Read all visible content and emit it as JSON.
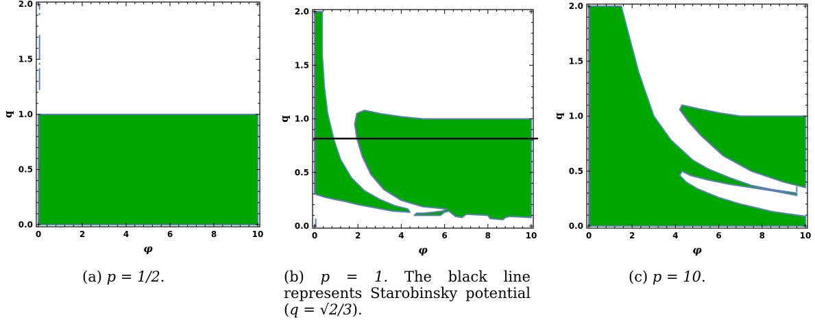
{
  "chart_data": [
    {
      "type": "region",
      "xlabel": "φ",
      "ylabel": "q",
      "xlim": [
        0,
        10
      ],
      "ylim": [
        0,
        2
      ],
      "xticks": [
        "0",
        "2",
        "4",
        "6",
        "8",
        "10"
      ],
      "yticks": [
        "0.0",
        "0.5",
        "1.0",
        "1.5",
        "2.0"
      ],
      "fill_color": "#00a600",
      "edge_color": "#5b7fb5",
      "regions": [
        [
          [
            0,
            0
          ],
          [
            10,
            0
          ],
          [
            10,
            1.0
          ],
          [
            0,
            1.0
          ]
        ]
      ],
      "dashed_segments": [
        [
          [
            0.05,
            2.0
          ],
          [
            0.05,
            1.95
          ]
        ],
        [
          [
            0.05,
            1.92
          ],
          [
            0.05,
            1.9
          ]
        ],
        [
          [
            0.05,
            1.72
          ],
          [
            0.05,
            1.5
          ]
        ],
        [
          [
            0.05,
            1.47
          ],
          [
            0.05,
            1.45
          ]
        ],
        [
          [
            0.05,
            1.42
          ],
          [
            0.05,
            1.22
          ]
        ]
      ],
      "caption": "(a) p = 1/2."
    },
    {
      "type": "region",
      "xlabel": "φ",
      "ylabel": "q",
      "xlim": [
        0,
        10
      ],
      "ylim": [
        0,
        2
      ],
      "xticks": [
        "0",
        "2",
        "4",
        "6",
        "8",
        "10"
      ],
      "yticks": [
        "0.0",
        "0.5",
        "1.0",
        "1.5",
        "2.0"
      ],
      "fill_color": "#00a600",
      "edge_color": "#5b7fb5",
      "hline": 0.816,
      "regions": [
        [
          [
            0,
            2.0
          ],
          [
            0.35,
            2.0
          ],
          [
            0.35,
            1.6
          ],
          [
            0.45,
            1.3
          ],
          [
            0.6,
            1.05
          ],
          [
            0.9,
            0.8
          ],
          [
            1.2,
            0.62
          ],
          [
            1.7,
            0.45
          ],
          [
            2.3,
            0.33
          ],
          [
            3.0,
            0.25
          ],
          [
            3.7,
            0.19
          ],
          [
            4.3,
            0.16
          ],
          [
            4.4,
            0.13
          ],
          [
            3.6,
            0.14
          ],
          [
            2.8,
            0.17
          ],
          [
            2.0,
            0.2
          ],
          [
            1.4,
            0.23
          ],
          [
            0.9,
            0.25
          ],
          [
            0.45,
            0.27
          ],
          [
            0,
            0.3
          ]
        ],
        [
          [
            1.9,
            1.0
          ],
          [
            1.95,
            1.05
          ],
          [
            2.3,
            1.08
          ],
          [
            3.0,
            1.05
          ],
          [
            4.0,
            1.02
          ],
          [
            5.0,
            1.0
          ],
          [
            7.0,
            1.0
          ],
          [
            10,
            1.0
          ],
          [
            10,
            0.08
          ],
          [
            9.0,
            0.09
          ],
          [
            8.8,
            0.08
          ],
          [
            8.7,
            0.06
          ],
          [
            8.1,
            0.07
          ],
          [
            8.0,
            0.1
          ],
          [
            7.0,
            0.11
          ],
          [
            6.8,
            0.08
          ],
          [
            6.5,
            0.09
          ],
          [
            6.2,
            0.14
          ],
          [
            6.0,
            0.13
          ],
          [
            5.8,
            0.1
          ],
          [
            5.0,
            0.1
          ],
          [
            4.6,
            0.1
          ],
          [
            4.7,
            0.12
          ],
          [
            5.0,
            0.12
          ],
          [
            5.5,
            0.13
          ],
          [
            5.9,
            0.14
          ],
          [
            6.1,
            0.16
          ],
          [
            5.0,
            0.18
          ],
          [
            4.0,
            0.24
          ],
          [
            3.2,
            0.34
          ],
          [
            2.6,
            0.48
          ],
          [
            2.2,
            0.65
          ],
          [
            1.95,
            0.82
          ],
          [
            1.85,
            0.95
          ]
        ]
      ],
      "dashed_segments": [
        [
          [
            0.05,
            0.07
          ],
          [
            0.05,
            -0.01
          ]
        ]
      ],
      "caption": "(b) p = 1. The black line represents Starobinsky potential (q = √2/3)."
    },
    {
      "type": "region",
      "xlabel": "φ",
      "ylabel": "q",
      "xlim": [
        0,
        10
      ],
      "ylim": [
        0,
        2
      ],
      "xticks": [
        "0",
        "2",
        "4",
        "6",
        "8",
        "10"
      ],
      "yticks": [
        "0.0",
        "0.5",
        "1.0",
        "1.5",
        "2.0"
      ],
      "fill_color": "#00a600",
      "edge_color": "#5b7fb5",
      "regions": [
        [
          [
            0,
            0
          ],
          [
            10,
            0
          ],
          [
            10,
            0.09
          ],
          [
            8.5,
            0.13
          ],
          [
            7.0,
            0.2
          ],
          [
            6.0,
            0.26
          ],
          [
            5.0,
            0.34
          ],
          [
            4.5,
            0.4
          ],
          [
            4.2,
            0.46
          ],
          [
            4.3,
            0.5
          ],
          [
            4.7,
            0.46
          ],
          [
            5.5,
            0.42
          ],
          [
            6.5,
            0.38
          ],
          [
            7.5,
            0.35
          ],
          [
            8.5,
            0.32
          ],
          [
            9.6,
            0.28
          ],
          [
            9.6,
            0.3
          ],
          [
            8.5,
            0.33
          ],
          [
            7.5,
            0.37
          ],
          [
            6.5,
            0.44
          ],
          [
            5.5,
            0.52
          ],
          [
            4.8,
            0.6
          ],
          [
            3.8,
            0.78
          ],
          [
            3.0,
            1.0
          ],
          [
            2.3,
            1.4
          ],
          [
            1.9,
            1.7
          ],
          [
            1.5,
            2.0
          ],
          [
            0,
            2.0
          ]
        ],
        [
          [
            4.2,
            1.06
          ],
          [
            4.3,
            1.1
          ],
          [
            5.0,
            1.07
          ],
          [
            6.0,
            1.03
          ],
          [
            7.0,
            1.0
          ],
          [
            10,
            1.0
          ],
          [
            10,
            0.35
          ],
          [
            9.0,
            0.4
          ],
          [
            7.5,
            0.5
          ],
          [
            6.2,
            0.64
          ],
          [
            5.2,
            0.82
          ],
          [
            4.6,
            0.95
          ]
        ]
      ],
      "dashed_segments": [
        [
          [
            9.6,
            0.36
          ],
          [
            9.6,
            0.31
          ]
        ]
      ],
      "caption": "(c) p = 10."
    }
  ],
  "captions": {
    "a_label": "(a) ",
    "a_math": "p = 1/2",
    "a_end": ".",
    "b_label": "(b) ",
    "b_math": "p = 1",
    "b_text": ". The black line represents Starobinsky potential (",
    "b_math2": "q = √2/3",
    "b_end": ").",
    "c_label": "(c) ",
    "c_math": "p = 10",
    "c_end": "."
  }
}
